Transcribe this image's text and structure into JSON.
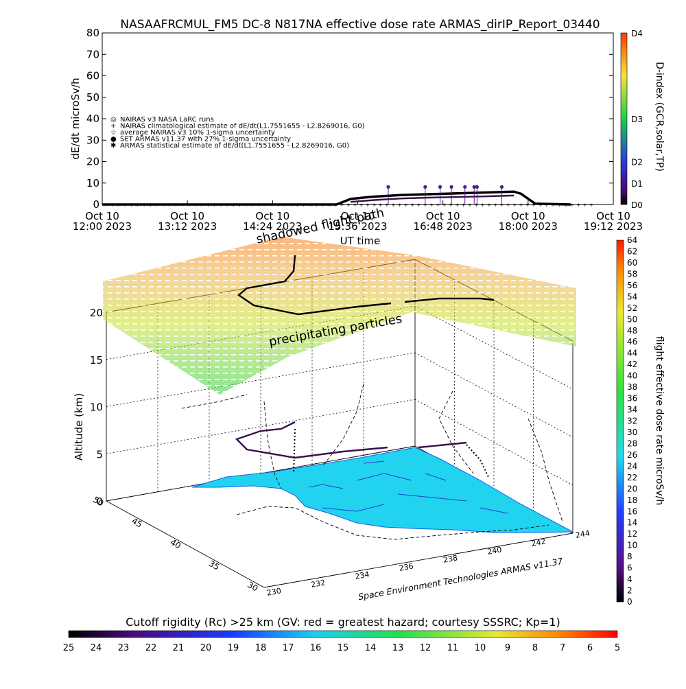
{
  "colors": {
    "map_fill": "#22d3f0",
    "map_edge": "#1060e0",
    "flight_path": "#000000",
    "flight_path_low": "#3a1050",
    "marker": "#5a1a80"
  },
  "chart_data": [
    {
      "type": "line",
      "title": "NASAAFRCMUL_FM5 DC-8    N817NA effective dose rate ARMAS_dirIP_Report_03440",
      "ylabel": "dE/dt microSv/h",
      "ylim": [
        0,
        80
      ],
      "yticks": [
        "0",
        "10",
        "20",
        "30",
        "40",
        "50",
        "60",
        "70",
        "80"
      ],
      "xlabel": "UT time",
      "xticks": [
        {
          "l1": "Oct 10",
          "l2": "12:00 2023"
        },
        {
          "l1": "Oct 10",
          "l2": "13:12 2023"
        },
        {
          "l1": "Oct 10",
          "l2": "14:24 2023"
        },
        {
          "l1": "Oct 10",
          "l2": "15:36 2023"
        },
        {
          "l1": "Oct 10",
          "l2": "16:48 2023"
        },
        {
          "l1": "Oct 10",
          "l2": "18:00 2023"
        },
        {
          "l1": "Oct 10",
          "l2": "19:12 2023"
        }
      ],
      "x_hours_ut": [
        12.0,
        13.2,
        14.4,
        15.6,
        16.8,
        18.0,
        19.2
      ],
      "legend": [
        "NAIRAS v3 NASA LaRC runs",
        "NAIRAS climatological estimate of dE/dt(L1.7551655 - L2.8269016, G0)",
        "average NAIRAS v3 10% 1-sigma uncertainty",
        "SET ARMAS v11.37 with 27% 1-sigma uncertainty",
        "ARMAS statistical estimate of dE/dt(L1.7551655 - L2.8269016, G0)"
      ],
      "legend_symbols": [
        "◎",
        "+",
        "☆",
        "●",
        "✱"
      ],
      "legend_position": "left",
      "series": [
        {
          "name": "NAIRAS climatological estimate of dE/dt(L1.7551655 - L2.8269016, G0)",
          "x": [
            12.0,
            13.0,
            14.0,
            15.0,
            15.3,
            15.5,
            15.8,
            16.2,
            16.6,
            17.0,
            17.4,
            17.8,
            17.9,
            18.1,
            18.6
          ],
          "y": [
            0,
            0,
            0,
            0,
            0,
            2.6,
            3.6,
            4.4,
            4.8,
            5.2,
            5.6,
            6.0,
            5.0,
            0.4,
            0
          ]
        },
        {
          "name": "ARMAS statistical estimate of dE/dt(L1.7551655 - L2.8269016, G0)",
          "x": [
            15.5,
            15.8,
            16.2,
            16.6,
            17.0,
            17.4,
            17.8
          ],
          "y": [
            1.2,
            2.0,
            2.8,
            3.2,
            3.5,
            3.8,
            4.2
          ]
        },
        {
          "name": "SET ARMAS v11.37 with 27% 1-sigma uncertainty",
          "x": [
            16.03,
            16.55,
            16.76,
            16.92,
            17.11,
            17.24,
            17.28,
            17.63
          ],
          "y": [
            8.2,
            8.2,
            8.2,
            8.2,
            8.2,
            8.2,
            8.2,
            8.2
          ]
        }
      ],
      "right_axis": {
        "label": "D-index (GCR,solar,TP)",
        "ticks": [
          "D0",
          "D1",
          "D2",
          "D3",
          "D4"
        ],
        "values": [
          0,
          10,
          20,
          40,
          80
        ]
      }
    },
    {
      "type": "scatter",
      "subtitle_1": "shadowed flight path",
      "subtitle_2": "precipitating particles",
      "zlabel": "Altitude (km)",
      "zticks": [
        "0",
        "5",
        "10",
        "15",
        "20"
      ],
      "lat_ticks": [
        "30",
        "35",
        "40",
        "45",
        "50"
      ],
      "lon_ticks": [
        "230",
        "232",
        "234",
        "236",
        "238",
        "240",
        "242",
        "244"
      ],
      "credit": "Space Environment Technologies ARMAS v11.37",
      "colorbar": {
        "label": "flight effective dose rate microSv/h",
        "ticks": [
          "0",
          "2",
          "4",
          "6",
          "8",
          "10",
          "12",
          "14",
          "16",
          "18",
          "20",
          "22",
          "24",
          "26",
          "28",
          "30",
          "32",
          "34",
          "36",
          "38",
          "40",
          "42",
          "44",
          "46",
          "48",
          "50",
          "52",
          "54",
          "56",
          "58",
          "60",
          "62",
          "64"
        ],
        "range": [
          0,
          64
        ]
      },
      "rigidity_bar": {
        "label": "Cutoff rigidity (Rc) >25 km (GV: red = greatest hazard; courtesy SSSRC; Kp=1)",
        "ticks": [
          "25",
          "24",
          "23",
          "22",
          "21",
          "20",
          "19",
          "18",
          "17",
          "16",
          "15",
          "14",
          "13",
          "12",
          "11",
          "10",
          "9",
          "8",
          "7",
          "6",
          "5"
        ]
      }
    }
  ]
}
